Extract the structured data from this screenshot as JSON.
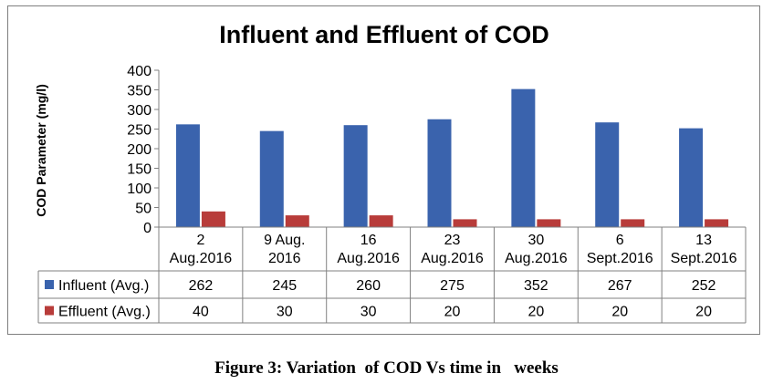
{
  "chart_data": {
    "type": "bar",
    "title": "Influent and Effluent of COD",
    "ylabel": "COD Parameter (mg/l)",
    "xlabel": "",
    "ylim": [
      0,
      400
    ],
    "yticks": [
      "0",
      "50",
      "100",
      "150",
      "200",
      "250",
      "300",
      "350",
      "400"
    ],
    "categories": [
      [
        "2",
        "Aug.2016"
      ],
      [
        "9 Aug.",
        "2016"
      ],
      [
        "16",
        "Aug.2016"
      ],
      [
        "23",
        "Aug.2016"
      ],
      [
        "30",
        "Aug.2016"
      ],
      [
        "6",
        "Sept.2016"
      ],
      [
        "13",
        "Sept.2016"
      ]
    ],
    "series": [
      {
        "name": "Influent (Avg.)",
        "color": "#3a63ad",
        "values": [
          262,
          245,
          260,
          275,
          352,
          267,
          252
        ]
      },
      {
        "name": "Effluent (Avg.)",
        "color": "#b83c3a",
        "values": [
          40,
          30,
          30,
          20,
          20,
          20,
          20
        ]
      }
    ],
    "grid": false,
    "legend": "data-table"
  },
  "caption": "Figure 3: Variation  of COD Vs time in   weeks"
}
